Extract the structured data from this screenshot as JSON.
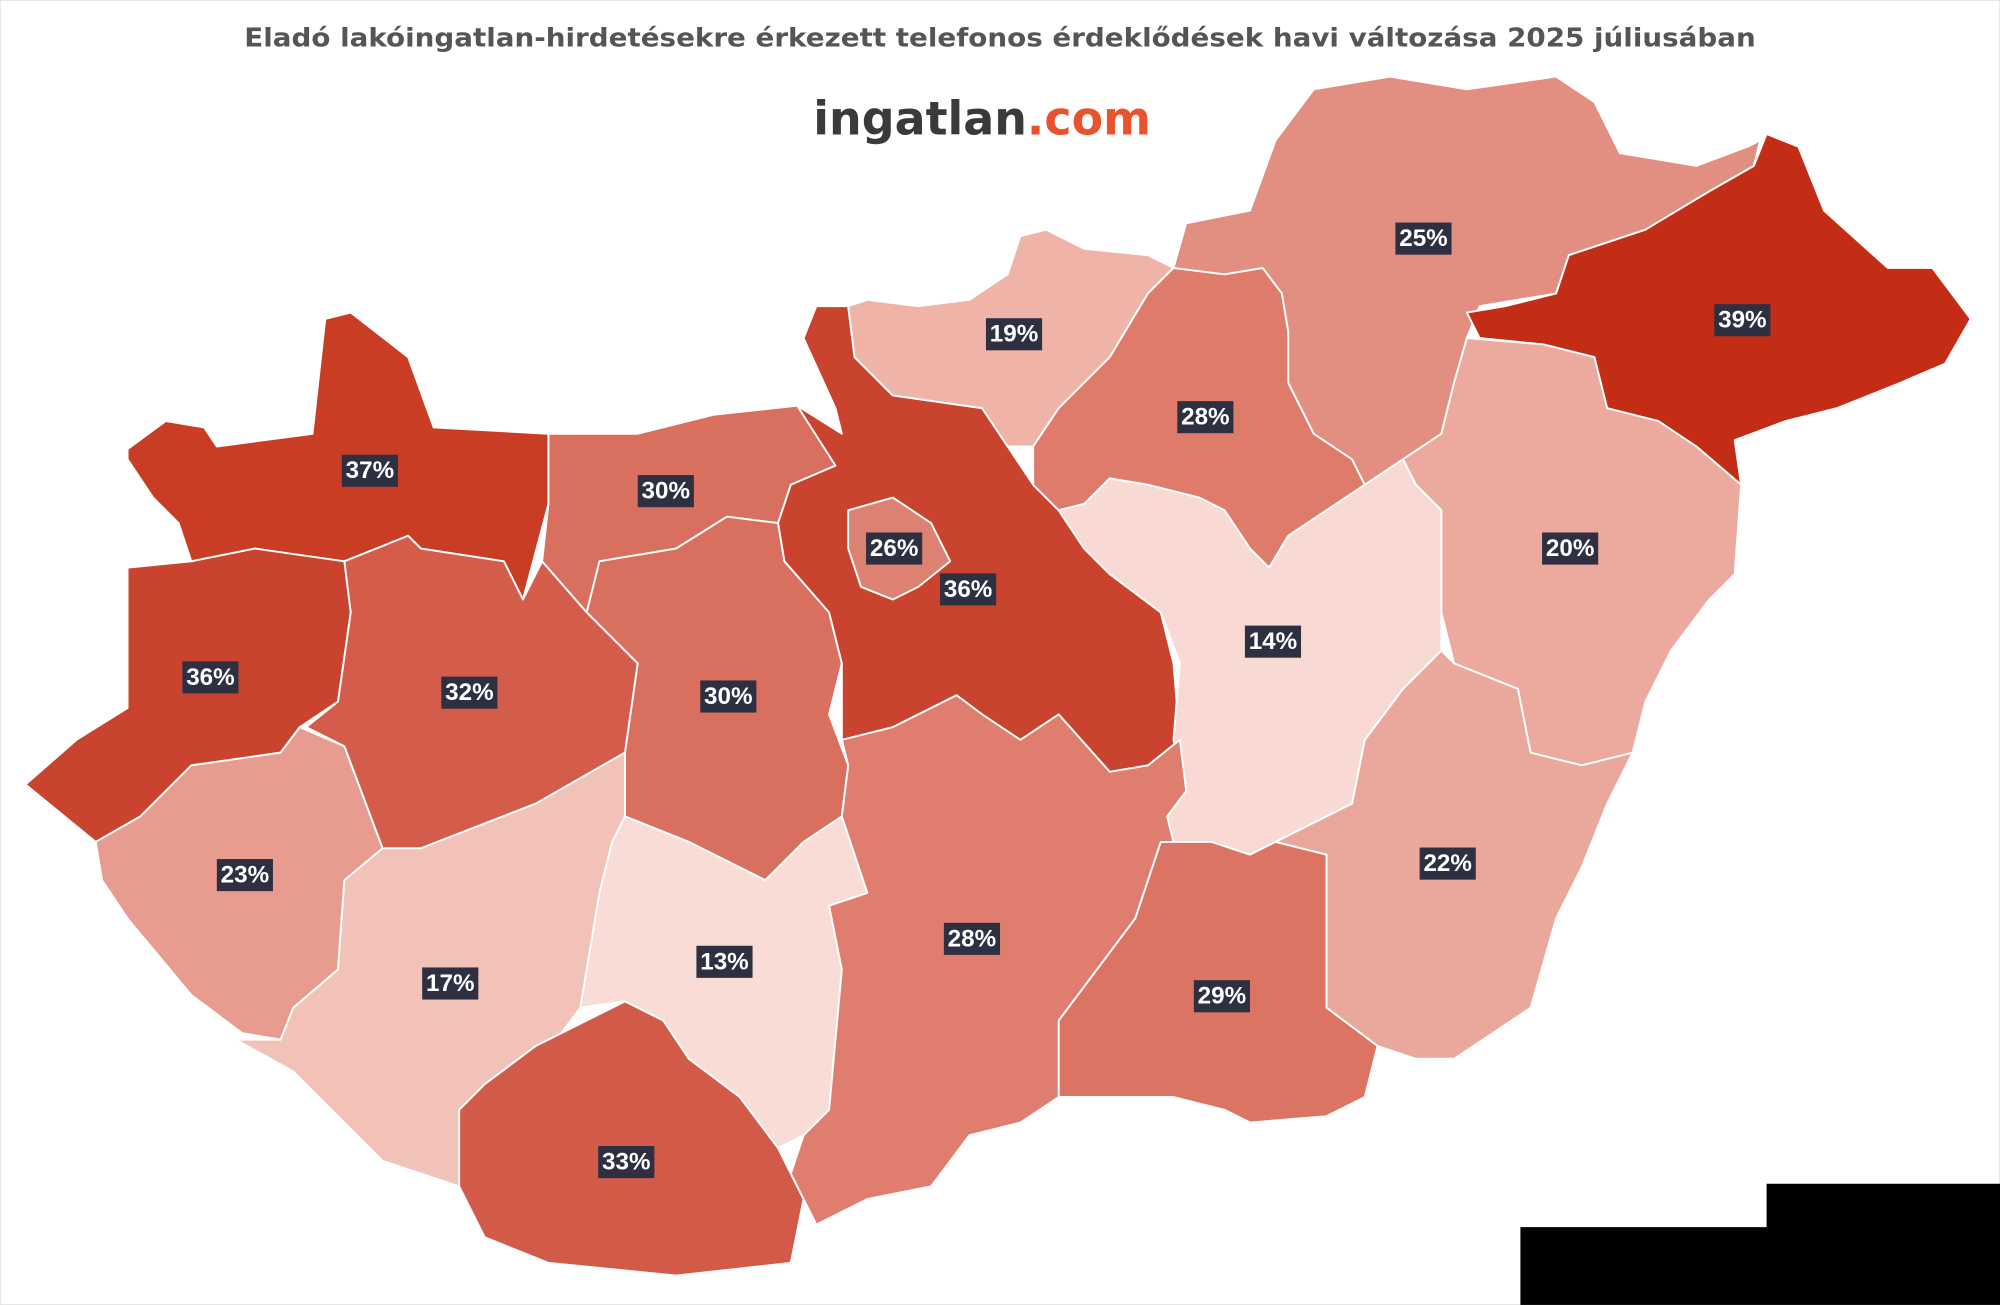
{
  "title": "Eladó lakóingatlan-hirdetésekre érkezett telefonos érdeklődések  havi változása 2025 júliusában",
  "logo": {
    "name": "ingatlan",
    "suffix": ".com"
  },
  "regions": [
    {
      "label": "37%",
      "color": "#c93d24"
    },
    {
      "label": "36%",
      "color": "#c9432e"
    },
    {
      "label": "23%",
      "color": "#e89c8f"
    },
    {
      "label": "32%",
      "color": "#d45c4a"
    },
    {
      "label": "30%",
      "color": "#d96f5e"
    },
    {
      "label": "30%",
      "color": "#d96f5e"
    },
    {
      "label": "17%",
      "color": "#f2c1b8"
    },
    {
      "label": "33%",
      "color": "#d25a48"
    },
    {
      "label": "13%",
      "color": "#f9dcd6"
    },
    {
      "label": "36%",
      "color": "#c9432e"
    },
    {
      "label": "26%",
      "color": "#dd8173"
    },
    {
      "label": "19%",
      "color": "#efb3a8"
    },
    {
      "label": "28%",
      "color": "#df7b6b"
    },
    {
      "label": "25%",
      "color": "#e28e80"
    },
    {
      "label": "39%",
      "color": "#c32d15"
    },
    {
      "label": "20%",
      "color": "#eca99d"
    },
    {
      "label": "14%",
      "color": "#f8d9d3"
    },
    {
      "label": "22%",
      "color": "#eaa79b"
    },
    {
      "label": "29%",
      "color": "#db7463"
    },
    {
      "label": "28%",
      "color": "#df7e6e"
    }
  ]
}
